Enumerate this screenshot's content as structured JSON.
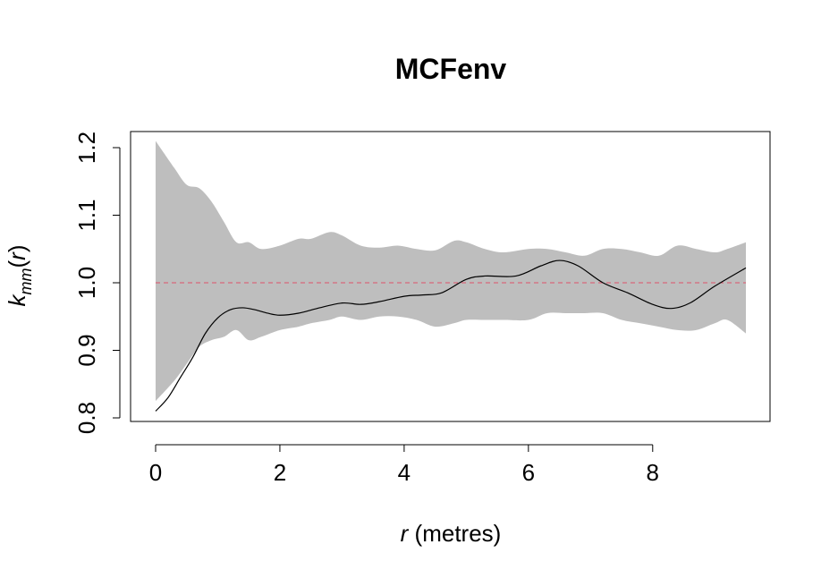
{
  "chart_data": {
    "type": "line",
    "title": "MCFenv",
    "xlabel": {
      "var": "r",
      "rest": " (metres)"
    },
    "ylabel": {
      "main": "k",
      "sub": "mm",
      "open": "(",
      "arg": "r",
      "close": ")"
    },
    "xlim": [
      0,
      9.5
    ],
    "ylim": [
      0.8,
      1.2
    ],
    "xticks": [
      {
        "value": 0,
        "label": "0"
      },
      {
        "value": 2,
        "label": "2"
      },
      {
        "value": 4,
        "label": "4"
      },
      {
        "value": 6,
        "label": "6"
      },
      {
        "value": 8,
        "label": "8"
      }
    ],
    "yticks": [
      {
        "value": 0.8,
        "label": "0.8"
      },
      {
        "value": 0.9,
        "label": "0.9"
      },
      {
        "value": 1.0,
        "label": "1.0"
      },
      {
        "value": 1.1,
        "label": "1.1"
      },
      {
        "value": 1.2,
        "label": "1.2"
      }
    ],
    "grid": false,
    "reference_line": {
      "y": 1.0,
      "color": "#df536b",
      "style": "dashed"
    },
    "envelope": {
      "color": "#bebebe",
      "x": [
        0,
        0.3,
        0.5,
        0.7,
        0.9,
        1.1,
        1.3,
        1.5,
        1.7,
        2.0,
        2.3,
        2.5,
        2.8,
        3.0,
        3.3,
        3.6,
        3.9,
        4.2,
        4.5,
        4.8,
        5.0,
        5.3,
        5.6,
        6.0,
        6.3,
        6.6,
        6.9,
        7.2,
        7.5,
        7.8,
        8.1,
        8.4,
        8.7,
        9.0,
        9.2,
        9.5
      ],
      "upper": [
        1.21,
        1.17,
        1.145,
        1.14,
        1.12,
        1.09,
        1.06,
        1.06,
        1.05,
        1.055,
        1.065,
        1.065,
        1.075,
        1.07,
        1.055,
        1.052,
        1.055,
        1.05,
        1.048,
        1.062,
        1.06,
        1.05,
        1.045,
        1.05,
        1.05,
        1.045,
        1.04,
        1.05,
        1.05,
        1.045,
        1.04,
        1.055,
        1.05,
        1.045,
        1.05,
        1.06
      ],
      "lower": [
        0.825,
        0.855,
        0.88,
        0.905,
        0.915,
        0.92,
        0.93,
        0.915,
        0.92,
        0.93,
        0.935,
        0.94,
        0.945,
        0.95,
        0.945,
        0.95,
        0.95,
        0.945,
        0.935,
        0.94,
        0.945,
        0.945,
        0.945,
        0.945,
        0.955,
        0.955,
        0.955,
        0.955,
        0.945,
        0.94,
        0.935,
        0.93,
        0.93,
        0.94,
        0.945,
        0.925
      ]
    },
    "series": [
      {
        "color": "#000000",
        "x": [
          0,
          0.2,
          0.4,
          0.6,
          0.8,
          1.0,
          1.2,
          1.4,
          1.6,
          1.8,
          2.0,
          2.3,
          2.6,
          3.0,
          3.3,
          3.6,
          4.0,
          4.3,
          4.6,
          5.0,
          5.3,
          5.8,
          6.2,
          6.5,
          6.8,
          7.2,
          7.6,
          8.0,
          8.3,
          8.6,
          9.0,
          9.5
        ],
        "y": [
          0.81,
          0.83,
          0.86,
          0.89,
          0.925,
          0.948,
          0.96,
          0.963,
          0.96,
          0.955,
          0.952,
          0.955,
          0.962,
          0.97,
          0.968,
          0.972,
          0.98,
          0.982,
          0.985,
          1.005,
          1.01,
          1.01,
          1.025,
          1.033,
          1.025,
          1.0,
          0.985,
          0.968,
          0.962,
          0.97,
          0.995,
          1.022
        ]
      }
    ]
  }
}
